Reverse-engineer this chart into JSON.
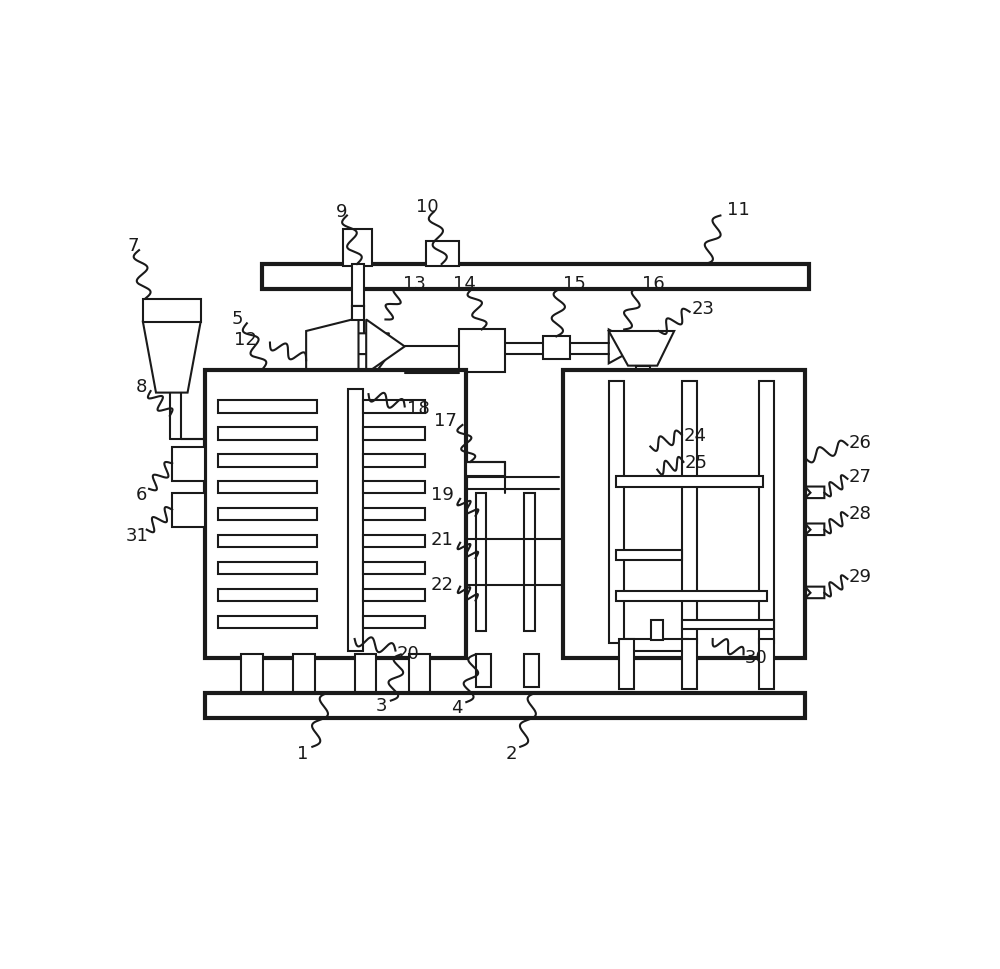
{
  "bg": "#ffffff",
  "lc": "#1a1a1a",
  "lw": 1.5,
  "tlw": 3.0,
  "fs": 13
}
